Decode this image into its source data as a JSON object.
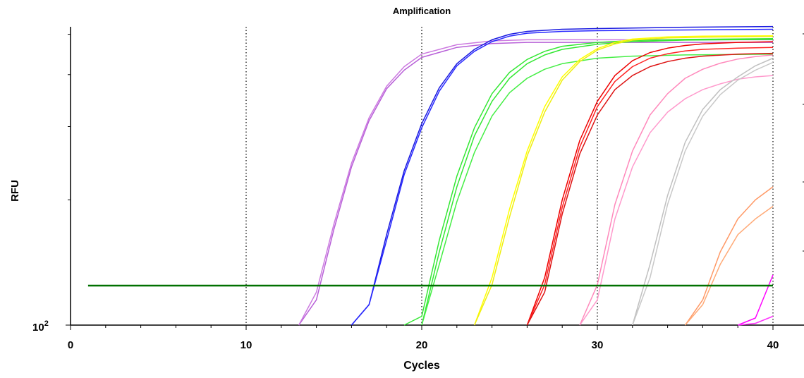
{
  "chart_data": {
    "type": "line",
    "title": "Amplification",
    "xlabel": "Cycles",
    "ylabel": "RFU",
    "y_scale": "log",
    "xlim": [
      0,
      40
    ],
    "x_ticks": [
      0,
      10,
      20,
      30,
      40
    ],
    "y_tick_label": {
      "base": "10",
      "exp": "2"
    },
    "grid": {
      "x_vertical_dotted_at": [
        10,
        20,
        30,
        40
      ]
    },
    "threshold": {
      "color": "#007000",
      "x": [
        1,
        40
      ]
    },
    "series": [
      {
        "color": "#b860d8",
        "x": [
          13,
          14,
          15,
          16,
          17,
          18,
          19,
          20,
          22,
          24,
          26,
          28,
          30,
          35,
          40
        ],
        "y": [
          100,
          115,
          170,
          240,
          310,
          370,
          410,
          440,
          465,
          475,
          478,
          478,
          478,
          478,
          478
        ]
      },
      {
        "color": "#cc7ae0",
        "x": [
          13,
          14,
          15,
          16,
          17,
          18,
          19,
          20,
          22,
          24,
          26,
          28,
          30,
          35,
          40
        ],
        "y": [
          100,
          120,
          175,
          245,
          315,
          375,
          418,
          448,
          472,
          482,
          485,
          485,
          485,
          485,
          485
        ]
      },
      {
        "color": "#1a1ae0",
        "x": [
          16,
          17,
          18,
          19,
          20,
          21,
          22,
          23,
          24,
          25,
          26,
          28,
          30,
          35,
          40
        ],
        "y": [
          100,
          112,
          165,
          235,
          305,
          372,
          425,
          460,
          485,
          500,
          508,
          514,
          516,
          520,
          522
        ]
      },
      {
        "color": "#2828ff",
        "x": [
          16,
          17,
          18,
          19,
          20,
          21,
          22,
          23,
          24,
          25,
          26,
          28,
          30,
          35,
          40
        ],
        "y": [
          100,
          112,
          160,
          230,
          298,
          365,
          420,
          455,
          480,
          495,
          503,
          508,
          510,
          512,
          514
        ]
      },
      {
        "color": "#33e833",
        "x": [
          19,
          20,
          21,
          22,
          23,
          24,
          25,
          26,
          27,
          28,
          30,
          32,
          35,
          40
        ],
        "y": [
          100,
          105,
          160,
          228,
          298,
          360,
          405,
          435,
          455,
          468,
          478,
          483,
          486,
          488
        ]
      },
      {
        "color": "#33e833",
        "x": [
          20,
          21,
          22,
          23,
          24,
          25,
          26,
          27,
          28,
          30,
          32,
          35,
          40
        ],
        "y": [
          100,
          150,
          215,
          285,
          345,
          392,
          425,
          446,
          460,
          473,
          480,
          484,
          486
        ]
      },
      {
        "color": "#44ee44",
        "x": [
          20,
          21,
          22,
          23,
          24,
          25,
          26,
          27,
          28,
          30,
          32,
          35,
          40
        ],
        "y": [
          100,
          140,
          198,
          260,
          318,
          362,
          392,
          412,
          425,
          438,
          443,
          446,
          448
        ]
      },
      {
        "color": "#ffff00",
        "x": [
          23,
          24,
          25,
          26,
          27,
          28,
          29,
          30,
          31,
          32,
          34,
          36,
          40
        ],
        "y": [
          100,
          130,
          190,
          262,
          335,
          395,
          435,
          462,
          478,
          487,
          493,
          495,
          496
        ]
      },
      {
        "color": "#eeee11",
        "x": [
          23,
          24,
          25,
          26,
          27,
          28,
          29,
          30,
          31,
          32,
          34,
          36,
          40
        ],
        "y": [
          100,
          125,
          182,
          255,
          325,
          388,
          430,
          458,
          474,
          484,
          490,
          492,
          494
        ]
      },
      {
        "color": "#ee0000",
        "x": [
          26,
          27,
          28,
          29,
          30,
          31,
          32,
          33,
          34,
          35,
          36,
          38,
          40
        ],
        "y": [
          100,
          130,
          200,
          278,
          345,
          398,
          432,
          452,
          463,
          470,
          474,
          478,
          480
        ]
      },
      {
        "color": "#ff2222",
        "x": [
          26,
          27,
          28,
          29,
          30,
          31,
          32,
          33,
          34,
          35,
          36,
          38,
          40
        ],
        "y": [
          100,
          125,
          192,
          268,
          335,
          385,
          418,
          438,
          449,
          456,
          460,
          463,
          465
        ]
      },
      {
        "color": "#dd1111",
        "x": [
          26,
          27,
          28,
          29,
          30,
          31,
          32,
          33,
          34,
          35,
          36,
          38,
          40
        ],
        "y": [
          100,
          120,
          185,
          258,
          320,
          368,
          398,
          418,
          430,
          438,
          443,
          448,
          450
        ]
      },
      {
        "color": "#ff88bb",
        "x": [
          29,
          30,
          31,
          32,
          33,
          34,
          35,
          36,
          37,
          38,
          39,
          40
        ],
        "y": [
          100,
          125,
          195,
          262,
          320,
          360,
          392,
          412,
          426,
          436,
          442,
          446
        ]
      },
      {
        "color": "#ff99cc",
        "x": [
          29,
          30,
          31,
          32,
          33,
          34,
          35,
          36,
          37,
          38,
          39,
          40
        ],
        "y": [
          100,
          115,
          180,
          240,
          290,
          325,
          350,
          368,
          380,
          390,
          395,
          398
        ]
      },
      {
        "color": "#c0c0c0",
        "x": [
          32,
          33,
          34,
          35,
          36,
          37,
          38,
          39,
          40
        ],
        "y": [
          100,
          140,
          205,
          275,
          330,
          368,
          395,
          420,
          438
        ]
      },
      {
        "color": "#c8c8c8",
        "x": [
          32,
          33,
          34,
          35,
          36,
          37,
          38,
          39,
          40
        ],
        "y": [
          100,
          130,
          195,
          262,
          318,
          358,
          388,
          410,
          428
        ]
      },
      {
        "color": "#ff9966",
        "x": [
          35,
          36,
          37,
          38,
          39,
          40
        ],
        "y": [
          100,
          115,
          150,
          180,
          200,
          215
        ]
      },
      {
        "color": "#ffaa77",
        "x": [
          35,
          36,
          37,
          38,
          39,
          40
        ],
        "y": [
          100,
          112,
          140,
          165,
          180,
          193
        ]
      },
      {
        "color": "#ff00ff",
        "x": [
          38,
          39,
          40
        ],
        "y": [
          100,
          104,
          132
        ]
      },
      {
        "color": "#ff33ff",
        "x": [
          38,
          39,
          40
        ],
        "y": [
          100,
          101,
          105
        ]
      }
    ]
  }
}
